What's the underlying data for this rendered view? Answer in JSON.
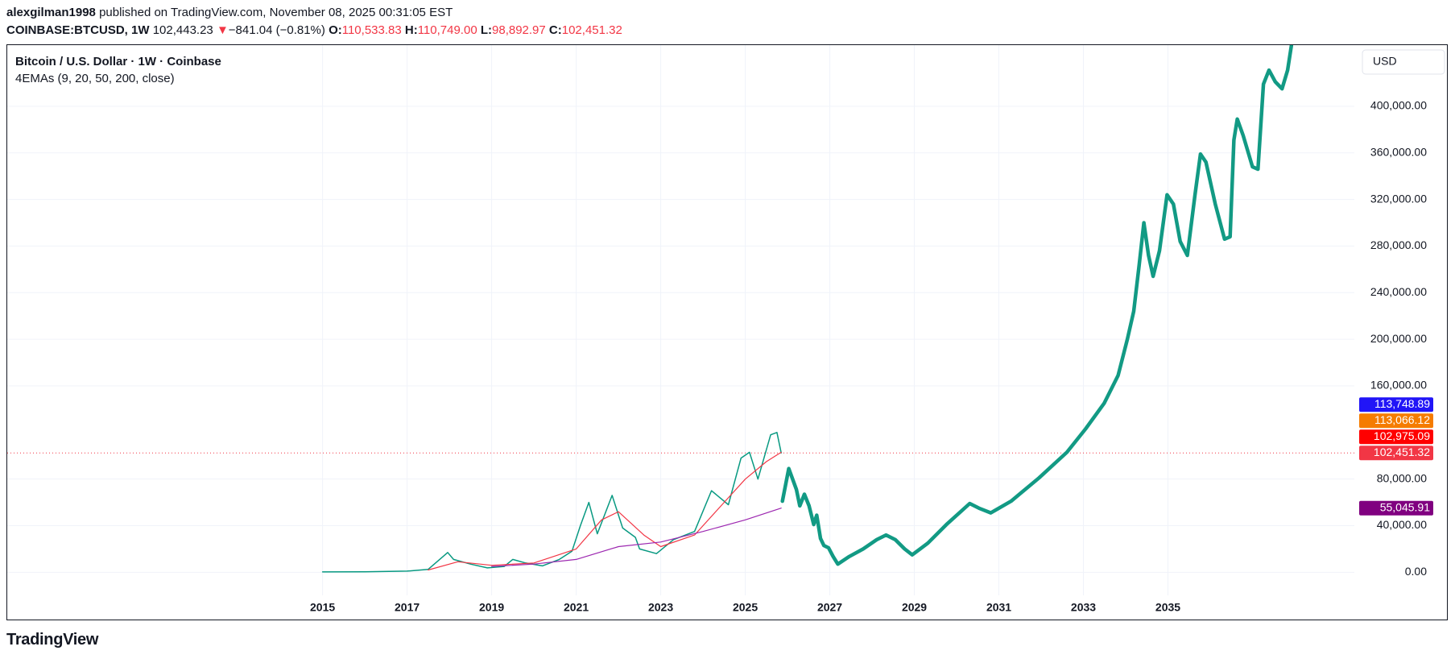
{
  "header": {
    "publisher": "alexgilman1998",
    "published": " published on TradingView.com, November 08, 2025 00:31:05 EST",
    "symbol": "COINBASE:BTCUSD, 1W",
    "last": "102,443.23",
    "arrow": "▼",
    "change": "−841.04 (−0.81%)",
    "o_label": "O:",
    "o": "110,533.83",
    "h_label": "H:",
    "h": "110,749.00",
    "l_label": "L:",
    "l": "98,892.97",
    "c_label": "C:",
    "c": "102,451.32"
  },
  "footer": {
    "brand": "TradingView"
  },
  "chart_data": {
    "type": "line",
    "title": "Bitcoin / U.S. Dollar · 1W · Coinbase",
    "subtitle": "4EMAs (9, 20, 50, 200, close)",
    "currency": "USD",
    "xlim": [
      2007.54,
      2039.41
    ],
    "ylim": [
      -40557,
      452485
    ],
    "xticks": [
      2015,
      2017,
      2019,
      2021,
      2023,
      2025,
      2027,
      2029,
      2031,
      2033,
      2035
    ],
    "yticks": [
      {
        "value": 0,
        "label": "0.00"
      },
      {
        "value": 40000,
        "label": "40,000.00"
      },
      {
        "value": 80000,
        "label": "80,000.00"
      },
      {
        "value": 160000,
        "label": "160,000.00"
      },
      {
        "value": 200000,
        "label": "200,000.00"
      },
      {
        "value": 240000,
        "label": "240,000.00"
      },
      {
        "value": 280000,
        "label": "280,000.00"
      },
      {
        "value": 320000,
        "label": "320,000.00"
      },
      {
        "value": 360000,
        "label": "360,000.00"
      },
      {
        "value": 400000,
        "label": "400,000.00"
      }
    ],
    "grid": true,
    "series": [
      {
        "color": "#089981",
        "width": 1.5,
        "x": [
          2015.0,
          2016.0,
          2017.0,
          2017.5,
          2017.96,
          2018.1,
          2018.5,
          2018.9,
          2019.3,
          2019.5,
          2019.8,
          2020.2,
          2020.6,
          2020.9,
          2021.1,
          2021.3,
          2021.5,
          2021.85,
          2022.1,
          2022.4,
          2022.5,
          2022.9,
          2023.3,
          2023.8,
          2024.2,
          2024.6,
          2024.9,
          2025.1,
          2025.3,
          2025.6,
          2025.75,
          2025.85
        ],
        "values": [
          300,
          430,
          1000,
          2500,
          17000,
          11000,
          7000,
          3800,
          5000,
          11000,
          8000,
          5500,
          11000,
          18000,
          40000,
          60000,
          33000,
          66000,
          38000,
          30000,
          20000,
          16000,
          28000,
          35000,
          70000,
          58000,
          98000,
          103000,
          80000,
          118000,
          120000,
          102443
        ]
      },
      {
        "color": "#f23645",
        "width": 1.2,
        "x": [
          2017.5,
          2018.2,
          2019.0,
          2020.0,
          2021.0,
          2021.6,
          2022.0,
          2022.6,
          2023.0,
          2023.8,
          2024.5,
          2025.0,
          2025.5,
          2025.85
        ],
        "values": [
          2000,
          9000,
          6000,
          8000,
          20000,
          45000,
          52000,
          32000,
          22000,
          32000,
          60000,
          80000,
          95000,
          102975
        ]
      },
      {
        "color": "#9c27b0",
        "width": 1.2,
        "x": [
          2019.0,
          2020.0,
          2021.0,
          2022.0,
          2023.0,
          2024.0,
          2025.0,
          2025.85
        ],
        "values": [
          5000,
          7000,
          11000,
          22000,
          26000,
          35000,
          45000,
          55046
        ]
      },
      {
        "color": "#129a84",
        "width": 4.5,
        "x": [
          2025.88,
          2026.03,
          2026.21,
          2026.29,
          2026.4,
          2026.51,
          2026.62,
          2026.69,
          2026.78,
          2026.86,
          2026.97,
          2027.08,
          2027.19,
          2027.46,
          2027.79,
          2028.11,
          2028.33,
          2028.55,
          2028.77,
          2028.95,
          2029.32,
          2029.76,
          2030.31,
          2030.53,
          2030.81,
          2031.29,
          2031.95,
          2032.61,
          2033.05,
          2033.49,
          2033.82,
          2034.04,
          2034.19,
          2034.32,
          2034.43,
          2034.54,
          2034.65,
          2034.8,
          2034.98,
          2035.13,
          2035.29,
          2035.46,
          2035.64,
          2035.77,
          2035.9,
          2036.12,
          2036.34,
          2036.47,
          2036.56,
          2036.64,
          2036.78,
          2037.0,
          2037.13,
          2037.26,
          2037.39,
          2037.54,
          2037.7,
          2037.83,
          2037.92
        ],
        "values": [
          61000,
          89000,
          71000,
          57000,
          67000,
          57000,
          41000,
          49000,
          29000,
          23000,
          21000,
          13500,
          7000,
          13500,
          20000,
          28000,
          32000,
          28000,
          20000,
          15000,
          25000,
          41000,
          59000,
          55000,
          51000,
          61000,
          81000,
          103000,
          123000,
          145000,
          169000,
          200000,
          224000,
          264000,
          300000,
          272000,
          254000,
          276000,
          324000,
          316000,
          284000,
          272000,
          324000,
          359000,
          352000,
          316000,
          286000,
          288000,
          371000,
          389000,
          375000,
          348000,
          346000,
          419000,
          431000,
          421000,
          415000,
          431000,
          452000
        ]
      }
    ],
    "last_price_line": {
      "value": 102451.32,
      "color": "#f23645"
    },
    "price_labels": [
      {
        "value": 113748.89,
        "label": "113,748.89",
        "color": "#2115f7"
      },
      {
        "value": 113066.12,
        "label": "113,066.12",
        "color": "#f57c00"
      },
      {
        "value": 102975.09,
        "label": "102,975.09",
        "color": "#ff0000"
      },
      {
        "value": 102451.32,
        "label": "102,451.32",
        "color": "#f23645"
      },
      {
        "value": 55045.91,
        "label": "55,045.91",
        "color": "#800080"
      }
    ]
  }
}
